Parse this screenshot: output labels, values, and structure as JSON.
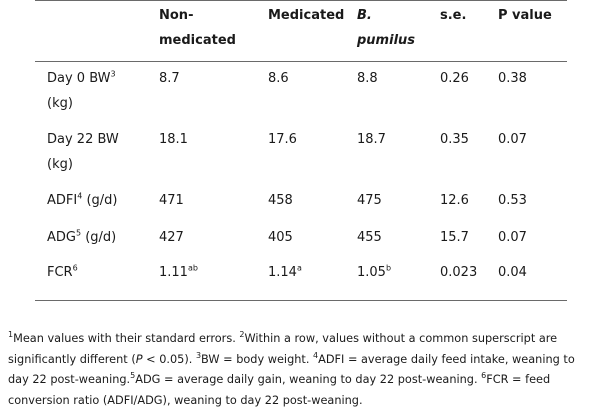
{
  "table": {
    "headers": {
      "nonmed_1": "Non-",
      "nonmed_2": "medicated",
      "medicated": "Medicated",
      "bpumilus_1": "B.",
      "bpumilus_2": "pumilus",
      "se": "s.e.",
      "pvalue": "P value"
    },
    "rows": [
      {
        "label_1": "Day 0 BW",
        "label_sup": "3",
        "label_2": "(kg)",
        "nonmed": "8.7",
        "nonmed_sup": "",
        "med": "8.6",
        "med_sup": "",
        "bp": "8.8",
        "bp_sup": "",
        "se": "0.26",
        "p": "0.38"
      },
      {
        "label_1": "Day 22 BW",
        "label_sup": "",
        "label_2": "(kg)",
        "nonmed": "18.1",
        "nonmed_sup": "",
        "med": "17.6",
        "med_sup": "",
        "bp": "18.7",
        "bp_sup": "",
        "se": "0.35",
        "p": "0.07"
      },
      {
        "label_1": "ADFI",
        "label_sup": "4",
        "label_2": " (g/d)",
        "nonmed": "471",
        "nonmed_sup": "",
        "med": "458",
        "med_sup": "",
        "bp": "475",
        "bp_sup": "",
        "se": "12.6",
        "p": "0.53"
      },
      {
        "label_1": "ADG",
        "label_sup": "5",
        "label_2": " (g/d)",
        "nonmed": "427",
        "nonmed_sup": "",
        "med": "405",
        "med_sup": "",
        "bp": "455",
        "bp_sup": "",
        "se": "15.7",
        "p": "0.07"
      },
      {
        "label_1": "FCR",
        "label_sup": "6",
        "label_2": "",
        "nonmed": "1.11",
        "nonmed_sup": "ab",
        "med": "1.14",
        "med_sup": "a",
        "bp": "1.05",
        "bp_sup": "b",
        "se": "0.023",
        "p": "0.04"
      }
    ]
  },
  "footnote": {
    "s1_sup": "1",
    "s1": "Mean values with their standard errors.",
    "s2_sup": "2",
    "s2": "Within a row, values without a common superscript are significantly different (",
    "s2_p": "P",
    "s2_end": " < 0.05).",
    "s3_sup": "3",
    "s3": "BW = body weight.",
    "s4_sup": "4",
    "s4": "ADFI = average daily feed intake, weaning to day 22 post-weaning.",
    "s5_sup": "5",
    "s5": "ADG = average daily gain, weaning to day 22 post-weaning.",
    "s6_sup": "6",
    "s6": "FCR = feed conversion ratio (ADFI/ADG), weaning to day 22 post-weaning."
  }
}
